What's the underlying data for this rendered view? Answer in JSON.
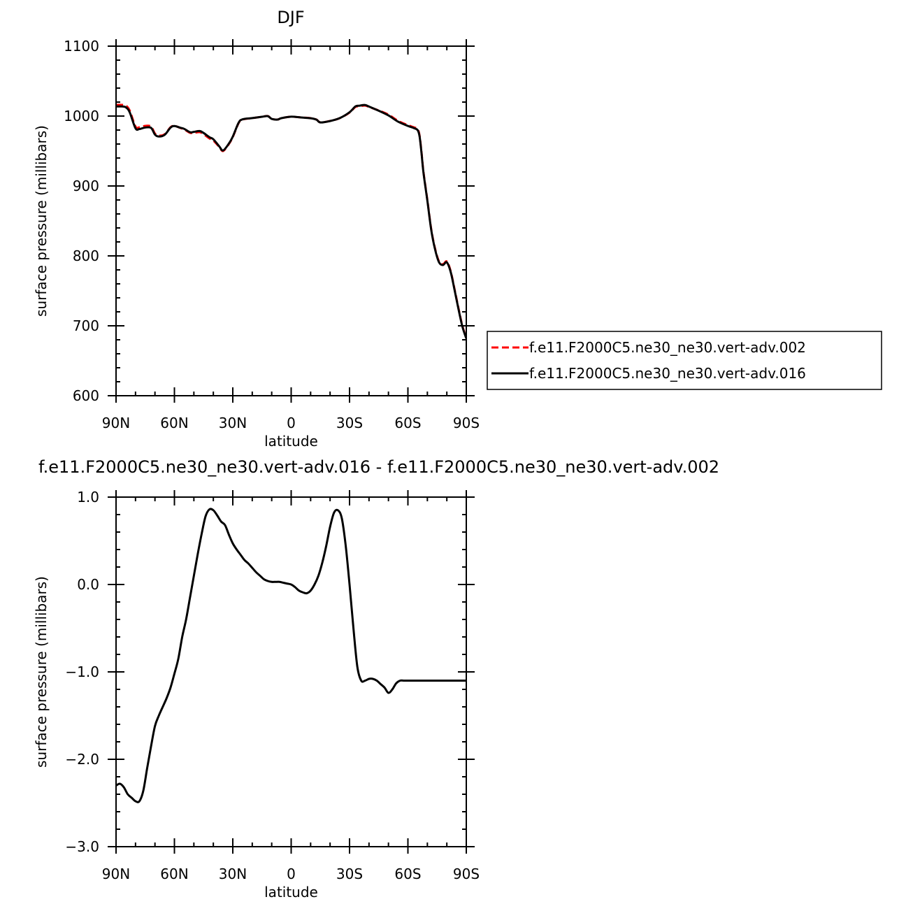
{
  "chart_data": [
    {
      "type": "line",
      "title": "DJF",
      "xlabel": "latitude",
      "ylabel": "surface pressure (millibars)",
      "xlim": [
        90,
        -90
      ],
      "ylim": [
        600,
        1100
      ],
      "xticks": [
        90,
        60,
        30,
        0,
        -30,
        -60,
        -90
      ],
      "xtick_labels": [
        "90N",
        "60N",
        "30N",
        "0",
        "30S",
        "60S",
        "90S"
      ],
      "yticks": [
        600,
        700,
        800,
        900,
        1000,
        1100
      ],
      "ytick_labels": [
        "600",
        "700",
        "800",
        "900",
        "1000",
        "1100"
      ],
      "grid": false,
      "legend_position": "right",
      "series": [
        {
          "name": "f.e11.F2000C5.ne30_ne30.vert-adv.002",
          "color": "#ff0000",
          "style": "dashed",
          "x": [
            90,
            87,
            85,
            83,
            80,
            78,
            75,
            72,
            70,
            68,
            65,
            62,
            60,
            57,
            55,
            52,
            50,
            47,
            45,
            42,
            40,
            37,
            35,
            32,
            30,
            27,
            25,
            20,
            15,
            12,
            10,
            7,
            5,
            0,
            -5,
            -10,
            -13,
            -15,
            -20,
            -25,
            -30,
            -33,
            -35,
            -38,
            -40,
            -45,
            -50,
            -55,
            -60,
            -63,
            -65,
            -66,
            -67,
            -68,
            -70,
            -72,
            -74,
            -76,
            -78,
            -80,
            -82,
            -84,
            -86,
            -88,
            -90
          ],
          "y": [
            1016,
            1016,
            1015,
            1008,
            985,
            984,
            986,
            985,
            975,
            972,
            974,
            984,
            986,
            983,
            981,
            976,
            976,
            977,
            974,
            968,
            965,
            956,
            950,
            960,
            970,
            990,
            995,
            997,
            999,
            1000,
            996,
            995,
            997,
            999,
            998,
            997,
            995,
            991,
            993,
            997,
            1005,
            1013,
            1014,
            1015,
            1013,
            1008,
            1002,
            993,
            987,
            984,
            981,
            972,
            948,
            920,
            880,
            838,
            810,
            792,
            788,
            792,
            778,
            752,
            725,
            700,
            683
          ]
        },
        {
          "name": "f.e11.F2000C5.ne30_ne30.vert-adv.016",
          "color": "#000000",
          "style": "solid",
          "x": [
            90,
            87,
            85,
            83,
            80,
            78,
            75,
            72,
            70,
            68,
            65,
            62,
            60,
            57,
            55,
            52,
            50,
            47,
            45,
            42,
            40,
            37,
            35,
            32,
            30,
            27,
            25,
            20,
            15,
            12,
            10,
            7,
            5,
            0,
            -5,
            -10,
            -13,
            -15,
            -20,
            -25,
            -30,
            -33,
            -35,
            -38,
            -40,
            -45,
            -50,
            -55,
            -60,
            -63,
            -65,
            -66,
            -67,
            -68,
            -70,
            -72,
            -74,
            -76,
            -78,
            -80,
            -82,
            -84,
            -86,
            -88,
            -90
          ],
          "y": [
            1013.7,
            1013.7,
            1012.6,
            1005.5,
            982.5,
            981.5,
            983.6,
            983.1,
            973.5,
            970.7,
            973.2,
            983.5,
            985.8,
            983.3,
            981.7,
            976.9,
            977.4,
            978.6,
            975.8,
            969.8,
            966.8,
            956.8,
            950.8,
            960.7,
            970.6,
            990.5,
            995.3,
            997.1,
            999.0,
            999.9,
            995.9,
            995.0,
            997.0,
            999.1,
            998.0,
            996.9,
            994.9,
            990.9,
            992.9,
            997.1,
            1005.4,
            1013.7,
            1014.8,
            1015.8,
            1013.6,
            1007.6,
            1000.9,
            991.9,
            985.9,
            982.9,
            979.9,
            970.9,
            946.9,
            918.9,
            878.9,
            836.9,
            808.8,
            790.8,
            786.9,
            790.8,
            776.8,
            750.9,
            723.8,
            698.9,
            681.9
          ]
        }
      ]
    },
    {
      "type": "line",
      "title": "f.e11.F2000C5.ne30_ne30.vert-adv.016 - f.e11.F2000C5.ne30_ne30.vert-adv.002",
      "xlabel": "latitude",
      "ylabel": "surface pressure (millibars)",
      "xlim": [
        90,
        -90
      ],
      "ylim": [
        -3.0,
        1.0
      ],
      "xticks": [
        90,
        60,
        30,
        0,
        -30,
        -60,
        -90
      ],
      "xtick_labels": [
        "90N",
        "60N",
        "30N",
        "0",
        "30S",
        "60S",
        "90S"
      ],
      "yticks": [
        -3.0,
        -2.0,
        -1.0,
        0.0,
        1.0
      ],
      "ytick_labels": [
        "−3.0",
        "−2.0",
        "−1.0",
        "0.0",
        "1.0"
      ],
      "grid": false,
      "series": [
        {
          "color": "#000000",
          "style": "solid",
          "x": [
            90,
            88,
            86,
            84,
            82,
            80,
            78,
            76,
            74,
            72,
            70,
            68,
            66,
            64,
            62,
            60,
            58,
            56,
            54,
            52,
            50,
            48,
            46,
            44,
            42,
            40,
            38,
            36,
            34,
            32,
            30,
            28,
            26,
            24,
            22,
            20,
            18,
            16,
            14,
            12,
            10,
            8,
            6,
            4,
            2,
            0,
            -2,
            -4,
            -6,
            -8,
            -10,
            -12,
            -14,
            -16,
            -18,
            -20,
            -22,
            -24,
            -26,
            -28,
            -30,
            -32,
            -34,
            -36,
            -38,
            -40,
            -42,
            -44,
            -46,
            -48,
            -50,
            -52,
            -54,
            -56,
            -58,
            -60,
            -62,
            -64,
            -66,
            -68,
            -70,
            -72,
            -74,
            -76,
            -78,
            -80,
            -82,
            -84,
            -86,
            -88,
            -90
          ],
          "y": [
            -2.3,
            -2.28,
            -2.32,
            -2.4,
            -2.44,
            -2.48,
            -2.48,
            -2.36,
            -2.1,
            -1.85,
            -1.62,
            -1.5,
            -1.4,
            -1.3,
            -1.18,
            -1.02,
            -0.85,
            -0.6,
            -0.4,
            -0.15,
            0.1,
            0.35,
            0.58,
            0.78,
            0.86,
            0.85,
            0.79,
            0.72,
            0.68,
            0.57,
            0.47,
            0.4,
            0.34,
            0.28,
            0.24,
            0.19,
            0.14,
            0.1,
            0.06,
            0.04,
            0.03,
            0.03,
            0.03,
            0.02,
            0.01,
            0.0,
            -0.03,
            -0.07,
            -0.09,
            -0.1,
            -0.07,
            0.0,
            0.1,
            0.25,
            0.44,
            0.66,
            0.82,
            0.85,
            0.76,
            0.45,
            0.0,
            -0.5,
            -0.94,
            -1.1,
            -1.1,
            -1.08,
            -1.08,
            -1.1,
            -1.14,
            -1.18,
            -1.24,
            -1.2,
            -1.13,
            -1.1,
            -1.1,
            -1.1,
            -1.1,
            -1.1,
            -1.1,
            -1.1,
            -1.1,
            -1.1,
            -1.1,
            -1.1,
            -1.1,
            -1.1,
            -1.1,
            -1.1,
            -1.1,
            -1.1,
            -1.1
          ]
        }
      ]
    }
  ]
}
